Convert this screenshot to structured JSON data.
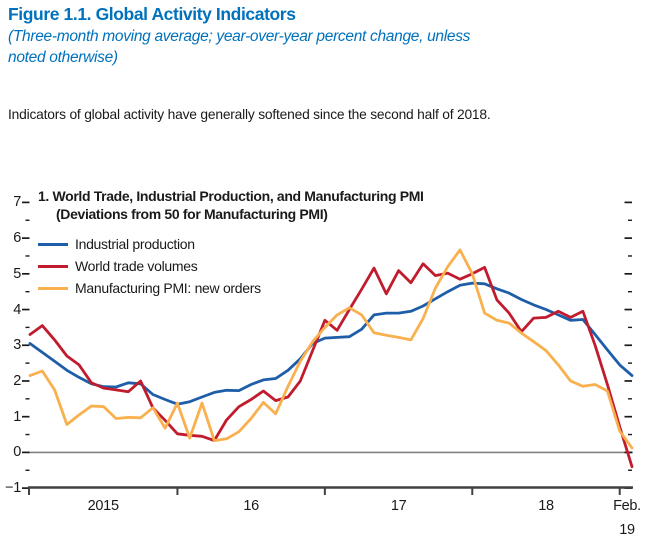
{
  "figure": {
    "title": "Figure 1.1.  Global Activity Indicators",
    "subtitle_line1": "(Three-month moving average; year-over-year percent change, unless",
    "subtitle_line2": "noted otherwise)",
    "deck": "Indicators of global activity have generally softened since the second half of 2018.",
    "panel_title_line1": "1. World Trade, Industrial Production, and Manufacturing PMI",
    "panel_title_line2": "(Deviations from 50 for Manufacturing PMI)"
  },
  "colors": {
    "accent_blue": "#0071bc",
    "line_blue": "#1e5da8",
    "line_red": "#c01c2e",
    "line_orange": "#f9b04e",
    "text_dark": "#1a1a1a",
    "axis": "#414042",
    "zero_line": "#808285"
  },
  "chart_data": {
    "type": "line",
    "frequency": "monthly",
    "x_start": "2015-01",
    "x_end": "2019-02",
    "ylim": [
      -1,
      7
    ],
    "y_tick_labels": [
      "7",
      "6",
      "5",
      "4",
      "3",
      "2",
      "1",
      "0",
      "−1"
    ],
    "y_minor_tick_step": 0.5,
    "grid": "zero-line-only",
    "legend_position": "top-left-inside",
    "x_tick_labels": [
      "2015",
      "16",
      "17",
      "18"
    ],
    "end_label_line1": "Feb.",
    "end_label_line2": "19",
    "series": [
      {
        "name": "Industrial production",
        "color": "#1e5da8",
        "values": [
          3.05,
          2.8,
          2.55,
          2.3,
          2.1,
          1.92,
          1.84,
          1.83,
          1.95,
          1.92,
          1.62,
          1.48,
          1.35,
          1.42,
          1.55,
          1.68,
          1.74,
          1.73,
          1.9,
          2.03,
          2.07,
          2.3,
          2.62,
          3.05,
          3.2,
          3.22,
          3.24,
          3.45,
          3.85,
          3.9,
          3.9,
          3.95,
          4.1,
          4.3,
          4.5,
          4.68,
          4.74,
          4.72,
          4.58,
          4.46,
          4.28,
          4.13,
          4.0,
          3.85,
          3.7,
          3.72,
          3.3,
          2.87,
          2.45,
          2.15
        ]
      },
      {
        "name": "World trade volumes",
        "color": "#c01c2e",
        "values": [
          3.3,
          3.55,
          3.15,
          2.7,
          2.45,
          1.95,
          1.8,
          1.75,
          1.7,
          2.0,
          1.25,
          0.9,
          0.52,
          0.48,
          0.45,
          0.33,
          0.91,
          1.28,
          1.48,
          1.72,
          1.45,
          1.55,
          2.0,
          2.85,
          3.7,
          3.42,
          4.0,
          4.57,
          5.16,
          4.44,
          5.09,
          4.75,
          5.28,
          4.95,
          5.02,
          4.85,
          5.0,
          5.18,
          4.27,
          3.9,
          3.38,
          3.76,
          3.78,
          3.95,
          3.78,
          3.95,
          3.0,
          1.9,
          0.72,
          -0.4
        ]
      },
      {
        "name": "Manufacturing PMI: new orders",
        "color": "#f9b04e",
        "values": [
          2.15,
          2.28,
          1.75,
          0.78,
          1.05,
          1.3,
          1.28,
          0.95,
          0.98,
          0.97,
          1.25,
          0.68,
          1.38,
          0.4,
          1.38,
          0.33,
          0.38,
          0.58,
          0.95,
          1.4,
          1.08,
          1.85,
          2.55,
          3.1,
          3.5,
          3.85,
          4.05,
          3.85,
          3.35,
          3.28,
          3.22,
          3.15,
          3.75,
          4.6,
          5.2,
          5.67,
          5.0,
          3.9,
          3.7,
          3.62,
          3.34,
          3.1,
          2.85,
          2.45,
          2.0,
          1.85,
          1.9,
          1.72,
          0.6,
          0.12
        ]
      }
    ]
  }
}
